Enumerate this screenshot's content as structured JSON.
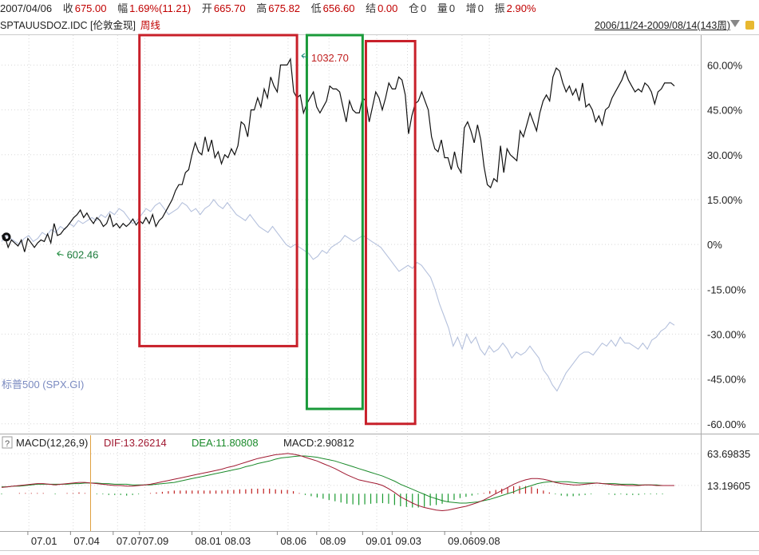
{
  "header": {
    "date": "2007/04/06",
    "close_label": "收",
    "close": "675.00",
    "change_label": "幅",
    "change": "1.69%(11.21)",
    "open_label": "开",
    "open": "665.70",
    "high_label": "高",
    "high": "675.82",
    "low_label": "低",
    "low": "656.60",
    "settle_label": "结",
    "settle": "0.00",
    "position_label": "仓",
    "position": "0",
    "volume_label": "量",
    "volume": "0",
    "increase_label": "增",
    "increase": "0",
    "amplitude_label": "振",
    "amplitude": "2.90%"
  },
  "subheader": {
    "symbol": "SPTAUUSDOZ.IDC [伦敦金现]",
    "period": "周线",
    "range": "2006/11/24-2009/08/14(143周)"
  },
  "annotations": {
    "high_label": "1032.70",
    "low_label": "602.46",
    "spx_label": "标普500 (SPX.GI)"
  },
  "macd_header": {
    "help": "?",
    "title": "MACD(12,26,9)",
    "dif": "DIF:13.26214",
    "dea": "DEA:11.80808",
    "macd": "MACD:2.90812"
  },
  "colors": {
    "gold_line": "#111111",
    "spx_line": "#b4c0dc",
    "dif_line": "#a01830",
    "dea_line": "#1a8a2a",
    "macd_pos": "#c02020",
    "macd_neg": "#1a9a30",
    "box_red": "#c8202a",
    "box_green": "#1a9a3a"
  },
  "chart_data": [
    {
      "type": "line",
      "title": "SPTAUUSDOZ.IDC [伦敦金现] 周线",
      "y_unit": "%",
      "ylim": [
        -63,
        70
      ],
      "yticks": [
        "60.00%",
        "45.00%",
        "30.00%",
        "15.00%",
        "0%",
        "-15.00%",
        "-30.00%",
        "-45.00%",
        "-60.00%"
      ],
      "ytick_values": [
        60,
        45,
        30,
        15,
        0,
        -15,
        -30,
        -45,
        -60
      ],
      "xticks": [
        "07.01",
        "07.04",
        "07.07",
        "07.09",
        "08.01",
        "08.03",
        "08.06",
        "08.09",
        "09.01",
        "09.03",
        "09.06",
        "09.08"
      ],
      "xtick_index": [
        8,
        21,
        34,
        42,
        58,
        67,
        84,
        96,
        110,
        119,
        135,
        143
      ],
      "grid": true,
      "series": [
        {
          "name": "",
          "values": [
            3,
            2.5,
            -1,
            1.5,
            0.5,
            -0.5,
            1.5,
            -2.5,
            2,
            0.5,
            -1,
            0.5,
            1.5,
            1,
            3.5,
            0.5,
            7,
            3,
            3.5,
            5,
            6,
            7.5,
            9,
            10,
            11.5,
            9,
            10.5,
            8.5,
            7,
            9,
            8,
            6,
            7,
            10,
            6,
            7,
            5.5,
            7,
            6,
            7,
            8.5,
            6.5,
            8,
            7,
            9,
            7,
            10,
            6,
            8,
            9,
            11,
            13,
            15,
            18,
            20,
            20,
            24,
            25,
            30,
            34,
            31,
            30,
            36,
            31,
            35,
            29,
            31,
            27,
            30,
            29,
            32,
            30,
            33,
            41,
            40,
            36,
            45,
            45,
            49,
            46,
            52,
            49,
            56,
            53,
            51,
            60,
            60,
            60,
            62,
            51,
            49,
            50,
            44,
            47,
            49,
            51,
            46,
            44,
            46,
            48,
            53,
            52,
            52,
            51,
            46,
            41,
            48,
            45,
            44,
            44,
            49,
            48,
            41,
            46,
            51,
            49,
            45,
            49,
            54,
            52,
            52,
            56,
            55,
            50,
            37,
            43,
            47,
            48,
            51,
            48,
            45,
            36,
            32,
            31,
            35,
            29,
            29,
            25,
            31,
            26,
            24,
            39,
            41,
            38,
            34,
            40,
            35,
            26,
            20,
            19,
            22,
            21,
            33,
            24,
            32,
            30,
            29,
            28,
            38,
            36,
            40,
            44,
            41,
            38,
            44,
            48,
            50,
            48,
            56,
            59,
            58,
            54,
            51,
            53,
            50,
            52,
            48,
            54,
            46,
            47,
            45,
            41,
            43,
            40,
            45,
            46,
            49,
            51,
            53,
            55,
            58,
            55,
            53,
            51,
            52,
            51,
            54,
            53,
            51,
            47,
            51,
            52,
            54,
            54,
            54,
            53
          ]
        },
        {
          "name": "标普500 (SPX.GI)",
          "values": [
            1,
            3,
            2,
            1,
            0,
            2,
            3,
            1,
            2,
            4,
            3,
            5,
            4,
            6,
            5,
            7,
            6,
            8,
            7,
            8,
            9,
            8,
            10,
            9,
            11,
            10,
            12,
            11,
            9,
            7,
            8,
            10,
            12,
            11,
            13,
            14,
            12,
            10,
            11,
            12,
            14,
            13,
            11,
            12,
            10,
            12,
            13,
            15,
            13,
            12,
            14,
            12,
            10,
            9,
            8,
            10,
            8,
            6,
            5,
            4,
            6,
            4,
            2,
            0,
            -1,
            0,
            -1,
            -2,
            -3,
            -5,
            -4,
            -2,
            -3,
            -1,
            0,
            1,
            3,
            2,
            1,
            2,
            3,
            2,
            1,
            0,
            -1,
            -3,
            -5,
            -7,
            -9,
            -8,
            -7,
            -8,
            -6,
            -7,
            -9,
            -11,
            -15,
            -20,
            -24,
            -28,
            -34,
            -31,
            -35,
            -30,
            -33,
            -31,
            -35,
            -37,
            -34,
            -36,
            -35,
            -33,
            -35,
            -38,
            -36,
            -37,
            -36,
            -34,
            -36,
            -38,
            -42,
            -44,
            -47,
            -49,
            -46,
            -43,
            -41,
            -39,
            -37,
            -36,
            -36,
            -37,
            -35,
            -33,
            -34,
            -32,
            -34,
            -31,
            -33,
            -33,
            -34,
            -35,
            -33,
            -35,
            -32,
            -31,
            -29,
            -28,
            -26,
            -27
          ]
        }
      ],
      "annotations": [
        {
          "text": "1032.70",
          "at_index": 58,
          "note_value": 62
        },
        {
          "text": "602.46",
          "at_index": 4,
          "note_value": -2.5
        }
      ],
      "highlight_boxes": [
        {
          "color": "red",
          "x_range_index": [
            42,
            90
          ],
          "y_range": [
            -34,
            70
          ]
        },
        {
          "color": "green",
          "x_range_index": [
            93,
            110
          ],
          "y_range": [
            -55,
            70
          ]
        },
        {
          "color": "red",
          "x_range_index": [
            111,
            126
          ],
          "y_range": [
            -60,
            68
          ]
        }
      ]
    },
    {
      "type": "bar",
      "title": "MACD(12,26,9)",
      "yticks": [
        "63.69835",
        "13.19605"
      ],
      "ytick_values": [
        63.69835,
        13.19605
      ],
      "ylim": [
        -48,
        74
      ],
      "series": [
        {
          "name": "DIF",
          "values": [
            10,
            11,
            12,
            13,
            14,
            15,
            16,
            16,
            15,
            14,
            15,
            16,
            17,
            18,
            18,
            17,
            16,
            15,
            14,
            13,
            13,
            12,
            12,
            13,
            14,
            15,
            17,
            19,
            21,
            23,
            25,
            27,
            29,
            31,
            33,
            35,
            37,
            39,
            42,
            44,
            47,
            50,
            53,
            56,
            58,
            60,
            62,
            63,
            64,
            63,
            61,
            58,
            55,
            52,
            48,
            44,
            40,
            35,
            30,
            26,
            22,
            20,
            18,
            16,
            13,
            8,
            2,
            -5,
            -10,
            -15,
            -19,
            -22,
            -24,
            -26,
            -27,
            -26,
            -24,
            -22,
            -20,
            -17,
            -14,
            -10,
            -5,
            0,
            5,
            10,
            15,
            19,
            22,
            24,
            24,
            23,
            21,
            18,
            16,
            15,
            14,
            14,
            15,
            16,
            17,
            16,
            15,
            14,
            14,
            13,
            13,
            13,
            14,
            14,
            13,
            13,
            13,
            13
          ]
        },
        {
          "name": "DEA",
          "values": [
            11,
            11,
            12,
            12,
            13,
            14,
            15,
            15,
            15,
            15,
            15,
            15,
            16,
            16,
            17,
            17,
            17,
            16,
            16,
            15,
            15,
            15,
            14,
            14,
            14,
            14,
            15,
            16,
            17,
            18,
            20,
            22,
            24,
            26,
            28,
            30,
            32,
            34,
            36,
            38,
            40,
            43,
            45,
            48,
            50,
            52,
            55,
            57,
            58,
            59,
            60,
            60,
            59,
            58,
            56,
            54,
            52,
            49,
            46,
            43,
            40,
            37,
            34,
            31,
            28,
            24,
            20,
            15,
            11,
            7,
            3,
            -1,
            -5,
            -8,
            -11,
            -13,
            -14,
            -15,
            -15,
            -14,
            -13,
            -11,
            -9,
            -6,
            -3,
            0,
            3,
            7,
            10,
            13,
            16,
            18,
            19,
            19,
            19,
            19,
            18,
            17,
            17,
            17,
            17,
            16,
            16,
            16,
            15,
            15,
            15,
            14,
            14,
            14,
            14,
            13,
            13,
            13
          ]
        },
        {
          "name": "MACD",
          "values": [
            -1,
            0,
            0,
            1,
            1,
            1,
            1,
            1,
            0,
            -1,
            0,
            1,
            1,
            2,
            1,
            0,
            -1,
            -1,
            -2,
            -2,
            -2,
            -3,
            -2,
            -1,
            0,
            1,
            2,
            3,
            4,
            5,
            5,
            5,
            5,
            5,
            5,
            5,
            5,
            5,
            6,
            6,
            7,
            7,
            8,
            8,
            8,
            8,
            7,
            6,
            6,
            4,
            1,
            -2,
            -4,
            -6,
            -8,
            -10,
            -12,
            -14,
            -16,
            -17,
            -18,
            -17,
            -16,
            -15,
            -15,
            -16,
            -18,
            -20,
            -21,
            -22,
            -22,
            -21,
            -19,
            -18,
            -16,
            -13,
            -10,
            -7,
            -5,
            -3,
            -1,
            1,
            4,
            6,
            8,
            10,
            12,
            12,
            12,
            11,
            8,
            5,
            2,
            -1,
            -3,
            -4,
            -4,
            -3,
            -2,
            -1,
            0,
            0,
            -1,
            -2,
            -1,
            -2,
            -2,
            -2,
            -1,
            -1,
            -1,
            -1,
            0,
            0
          ]
        }
      ]
    }
  ]
}
